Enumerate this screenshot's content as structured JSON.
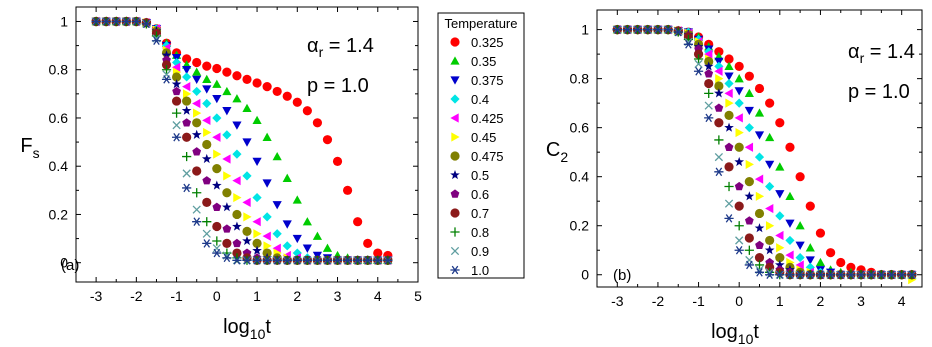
{
  "chart_data": [
    {
      "type": "scatter",
      "panel_label": "(a)",
      "ylabel": "F",
      "ylabel_sub": "s",
      "xlabel": "log",
      "xlabel_sub": "10",
      "xlabel_tail": "t",
      "xlim": [
        -3.5,
        5
      ],
      "ylim": [
        -0.08,
        1.06
      ],
      "xticks": [
        -3,
        -2,
        -1,
        0,
        1,
        2,
        3,
        4,
        5
      ],
      "yticks": [
        0,
        0.2,
        0.4,
        0.6,
        0.8,
        1
      ],
      "yticklabels": [
        "0",
        "0.2",
        "0.4",
        "0.6",
        "0.8",
        "1"
      ],
      "annotations": [
        {
          "greek": "α",
          "sub": "r",
          "text": " = 1.4"
        },
        {
          "text": "p = 1.0"
        }
      ],
      "grid": false,
      "legend": {
        "title": "Temperature",
        "placement": "right of panel (a)"
      },
      "x": [
        -3.0,
        -2.75,
        -2.5,
        -2.25,
        -2.0,
        -1.75,
        -1.5,
        -1.25,
        -1.0,
        -0.75,
        -0.5,
        -0.25,
        0.0,
        0.25,
        0.5,
        0.75,
        1.0,
        1.25,
        1.5,
        1.75,
        2.0,
        2.25,
        2.5,
        2.75,
        3.0,
        3.25,
        3.5,
        3.75,
        4.0,
        4.25
      ],
      "series": [
        {
          "name": "0.325",
          "color": "#ff0000",
          "marker": "circle",
          "values": [
            1,
            1,
            1,
            1,
            1,
            0.995,
            0.97,
            0.91,
            0.87,
            0.845,
            0.83,
            0.815,
            0.805,
            0.79,
            0.775,
            0.76,
            0.745,
            0.73,
            0.71,
            0.69,
            0.665,
            0.63,
            0.58,
            0.51,
            0.42,
            0.3,
            0.17,
            0.08,
            0.04,
            0.03
          ]
        },
        {
          "name": "0.35",
          "color": "#00cc00",
          "marker": "triangle-up",
          "values": [
            1,
            1,
            1,
            1,
            1,
            0.995,
            0.97,
            0.91,
            0.86,
            0.82,
            0.79,
            0.76,
            0.74,
            0.71,
            0.68,
            0.64,
            0.59,
            0.52,
            0.44,
            0.35,
            0.26,
            0.17,
            0.11,
            0.06,
            0.03,
            0.02,
            0.01,
            0.01,
            0.01,
            0.01
          ]
        },
        {
          "name": "0.375",
          "color": "#0000cc",
          "marker": "triangle-down",
          "values": [
            1,
            1,
            1,
            1,
            1,
            0.995,
            0.97,
            0.9,
            0.85,
            0.8,
            0.76,
            0.72,
            0.68,
            0.63,
            0.57,
            0.5,
            0.42,
            0.33,
            0.24,
            0.16,
            0.1,
            0.06,
            0.03,
            0.02,
            0.01,
            0.01,
            0.01,
            0.01,
            0.01,
            0.01
          ]
        },
        {
          "name": "0.4",
          "color": "#00e5e5",
          "marker": "diamond",
          "values": [
            1,
            1,
            1,
            1,
            1,
            0.995,
            0.97,
            0.9,
            0.83,
            0.77,
            0.71,
            0.66,
            0.6,
            0.53,
            0.45,
            0.36,
            0.27,
            0.19,
            0.12,
            0.07,
            0.04,
            0.02,
            0.01,
            0.01,
            0.01,
            0.01,
            0.01,
            0.01,
            0.01,
            0.01
          ]
        },
        {
          "name": "0.425",
          "color": "#ff00ff",
          "marker": "triangle-left",
          "values": [
            1,
            1,
            1,
            1,
            1,
            0.995,
            0.97,
            0.89,
            0.81,
            0.73,
            0.66,
            0.59,
            0.52,
            0.43,
            0.34,
            0.25,
            0.17,
            0.11,
            0.06,
            0.03,
            0.02,
            0.01,
            0.01,
            0.01,
            0.01,
            0.01,
            0.01,
            0.01,
            0.01,
            0.01
          ]
        },
        {
          "name": "0.45",
          "color": "#ffff00",
          "marker": "triangle-right",
          "values": [
            1,
            1,
            1,
            1,
            1,
            0.995,
            0.965,
            0.88,
            0.79,
            0.7,
            0.62,
            0.54,
            0.45,
            0.36,
            0.27,
            0.19,
            0.12,
            0.07,
            0.04,
            0.02,
            0.01,
            0.01,
            0.01,
            0.01,
            0.01,
            0.01,
            0.01,
            0.01,
            0.01,
            0.01
          ]
        },
        {
          "name": "0.475",
          "color": "#808000",
          "marker": "circle",
          "values": [
            1,
            1,
            1,
            1,
            1,
            0.995,
            0.96,
            0.87,
            0.77,
            0.67,
            0.58,
            0.49,
            0.39,
            0.29,
            0.2,
            0.13,
            0.08,
            0.04,
            0.02,
            0.01,
            0.01,
            0.01,
            0.01,
            0.01,
            0.01,
            0.01,
            0.01,
            0.01,
            0.01,
            0.01
          ]
        },
        {
          "name": "0.5",
          "color": "#000080",
          "marker": "star",
          "values": [
            1,
            1,
            1,
            1,
            1,
            0.995,
            0.96,
            0.86,
            0.74,
            0.63,
            0.53,
            0.43,
            0.32,
            0.23,
            0.15,
            0.09,
            0.05,
            0.02,
            0.01,
            0.01,
            0.01,
            0.01,
            0.01,
            0.01,
            0.01,
            0.01,
            0.01,
            0.01,
            0.01,
            0.01
          ]
        },
        {
          "name": "0.6",
          "color": "#800080",
          "marker": "pentagon",
          "values": [
            1,
            1,
            1,
            1,
            1,
            0.995,
            0.95,
            0.84,
            0.71,
            0.58,
            0.46,
            0.34,
            0.23,
            0.14,
            0.08,
            0.04,
            0.02,
            0.01,
            0.01,
            0.01,
            0.01,
            0.01,
            0.01,
            0.01,
            0.01,
            0.01,
            0.01,
            0.01,
            0.01,
            0.01
          ]
        },
        {
          "name": "0.7",
          "color": "#8b1a1a",
          "marker": "circle",
          "values": [
            1,
            1,
            1,
            1,
            1,
            0.995,
            0.95,
            0.82,
            0.67,
            0.52,
            0.38,
            0.25,
            0.15,
            0.08,
            0.04,
            0.02,
            0.01,
            0.01,
            0.01,
            0.01,
            0.01,
            0.01,
            0.01,
            0.01,
            0.01,
            0.01,
            0.01,
            0.01,
            0.01,
            0.01
          ]
        },
        {
          "name": "0.8",
          "color": "#008000",
          "marker": "plus",
          "values": [
            1,
            1,
            1,
            1,
            1,
            0.99,
            0.94,
            0.8,
            0.62,
            0.44,
            0.29,
            0.17,
            0.09,
            0.04,
            0.02,
            0.01,
            0.01,
            0.01,
            0.01,
            0.01,
            0.01,
            0.01,
            0.01,
            0.01,
            0.01,
            0.01,
            0.01,
            0.01,
            0.01,
            0.01
          ]
        },
        {
          "name": "0.9",
          "color": "#5f9ea0",
          "marker": "cross",
          "values": [
            1,
            1,
            1,
            1,
            1,
            0.99,
            0.93,
            0.78,
            0.57,
            0.37,
            0.22,
            0.12,
            0.06,
            0.03,
            0.01,
            0.01,
            0.01,
            0.01,
            0.01,
            0.01,
            0.01,
            0.01,
            0.01,
            0.01,
            0.01,
            0.01,
            0.01,
            0.01,
            0.01,
            0.01
          ]
        },
        {
          "name": "1.0",
          "color": "#1e3a8a",
          "marker": "asterisk",
          "values": [
            1,
            1,
            1,
            1,
            1,
            0.99,
            0.92,
            0.76,
            0.52,
            0.31,
            0.17,
            0.08,
            0.04,
            0.02,
            0.01,
            0.01,
            0.01,
            0.01,
            0.01,
            0.01,
            0.01,
            0.01,
            0.01,
            0.01,
            0.01,
            0.01,
            0.01,
            0.01,
            0.01,
            0.01
          ]
        }
      ]
    },
    {
      "type": "scatter",
      "panel_label": "(b)",
      "ylabel": "C",
      "ylabel_sub": "2",
      "xlabel": "log",
      "xlabel_sub": "10",
      "xlabel_tail": "t",
      "xlim": [
        -3.5,
        4.5
      ],
      "ylim": [
        -0.05,
        1.08
      ],
      "xticks": [
        -3,
        -2,
        -1,
        0,
        1,
        2,
        3,
        4
      ],
      "yticks": [
        0,
        0.2,
        0.4,
        0.6,
        0.8,
        1
      ],
      "yticklabels": [
        "0",
        "0.2",
        "0.4",
        "0.6",
        "0.8",
        "1"
      ],
      "annotations": [
        {
          "greek": "α",
          "sub": "r",
          "text": " = 1.4"
        },
        {
          "text": "p = 1.0"
        }
      ],
      "grid": false,
      "x": [
        -3.0,
        -2.75,
        -2.5,
        -2.25,
        -2.0,
        -1.75,
        -1.5,
        -1.25,
        -1.0,
        -0.75,
        -0.5,
        -0.25,
        0.0,
        0.25,
        0.5,
        0.75,
        1.0,
        1.25,
        1.5,
        1.75,
        2.0,
        2.25,
        2.5,
        2.75,
        3.0,
        3.25,
        3.5,
        3.75,
        4.0,
        4.25
      ],
      "series": [
        {
          "name": "0.325",
          "color": "#ff0000",
          "marker": "circle",
          "values": [
            1,
            1,
            1,
            1,
            1,
            1,
            0.995,
            0.99,
            0.97,
            0.94,
            0.91,
            0.88,
            0.85,
            0.81,
            0.76,
            0.7,
            0.62,
            0.52,
            0.4,
            0.28,
            0.17,
            0.09,
            0.05,
            0.03,
            0.02,
            0.01,
            0,
            0,
            0,
            0
          ]
        },
        {
          "name": "0.35",
          "color": "#00cc00",
          "marker": "triangle-up",
          "values": [
            1,
            1,
            1,
            1,
            1,
            1,
            0.995,
            0.99,
            0.97,
            0.93,
            0.89,
            0.85,
            0.8,
            0.74,
            0.66,
            0.56,
            0.44,
            0.32,
            0.2,
            0.11,
            0.05,
            0.02,
            0.01,
            0.01,
            0,
            0,
            0,
            0,
            0,
            0
          ]
        },
        {
          "name": "0.375",
          "color": "#0000cc",
          "marker": "triangle-down",
          "values": [
            1,
            1,
            1,
            1,
            1,
            1,
            0.995,
            0.99,
            0.96,
            0.92,
            0.87,
            0.81,
            0.75,
            0.67,
            0.57,
            0.45,
            0.33,
            0.21,
            0.12,
            0.06,
            0.02,
            0.01,
            0,
            0,
            0,
            0,
            0,
            0,
            0,
            0
          ]
        },
        {
          "name": "0.4",
          "color": "#00e5e5",
          "marker": "diamond",
          "values": [
            1,
            1,
            1,
            1,
            1,
            1,
            0.995,
            0.99,
            0.96,
            0.91,
            0.85,
            0.78,
            0.7,
            0.6,
            0.48,
            0.36,
            0.24,
            0.14,
            0.07,
            0.03,
            0.01,
            0,
            0,
            0,
            0,
            0,
            0,
            0,
            0,
            0
          ]
        },
        {
          "name": "0.425",
          "color": "#ff00ff",
          "marker": "triangle-left",
          "values": [
            1,
            1,
            1,
            1,
            1,
            1,
            0.995,
            0.985,
            0.95,
            0.9,
            0.83,
            0.74,
            0.64,
            0.52,
            0.39,
            0.27,
            0.16,
            0.08,
            0.04,
            0.01,
            0,
            0,
            0,
            0,
            0,
            0,
            0,
            0,
            0,
            0
          ]
        },
        {
          "name": "0.45",
          "color": "#ffff00",
          "marker": "triangle-right",
          "values": [
            1,
            1,
            1,
            1,
            1,
            1,
            0.995,
            0.985,
            0.95,
            0.88,
            0.8,
            0.7,
            0.58,
            0.45,
            0.32,
            0.2,
            0.11,
            0.05,
            0.02,
            0.01,
            0,
            0,
            0,
            0,
            0,
            0,
            0,
            0,
            0,
            -0.02
          ]
        },
        {
          "name": "0.475",
          "color": "#808000",
          "marker": "circle",
          "values": [
            1,
            1,
            1,
            1,
            1,
            1,
            0.995,
            0.98,
            0.94,
            0.87,
            0.77,
            0.65,
            0.52,
            0.38,
            0.25,
            0.14,
            0.07,
            0.03,
            0.01,
            0,
            0,
            0,
            0,
            0,
            0,
            0,
            0,
            0,
            0,
            0
          ]
        },
        {
          "name": "0.5",
          "color": "#000080",
          "marker": "star",
          "values": [
            1,
            1,
            1,
            1,
            1,
            1,
            0.995,
            0.98,
            0.93,
            0.85,
            0.74,
            0.6,
            0.46,
            0.32,
            0.19,
            0.1,
            0.04,
            0.02,
            0,
            0,
            0,
            0,
            0,
            0,
            0,
            0,
            0,
            0,
            0,
            0
          ]
        },
        {
          "name": "0.6",
          "color": "#800080",
          "marker": "pentagon",
          "values": [
            1,
            1,
            1,
            1,
            1,
            1,
            0.995,
            0.975,
            0.92,
            0.82,
            0.68,
            0.52,
            0.36,
            0.22,
            0.12,
            0.05,
            0.02,
            0.01,
            0,
            0,
            0,
            0,
            0,
            0,
            0,
            0,
            0,
            0,
            0,
            0
          ]
        },
        {
          "name": "0.7",
          "color": "#8b1a1a",
          "marker": "circle",
          "values": [
            1,
            1,
            1,
            1,
            1,
            1,
            0.995,
            0.97,
            0.9,
            0.78,
            0.62,
            0.44,
            0.28,
            0.15,
            0.07,
            0.03,
            0.01,
            0,
            0,
            0,
            0,
            0,
            0,
            0,
            0,
            0,
            0,
            0,
            0,
            0
          ]
        },
        {
          "name": "0.8",
          "color": "#008000",
          "marker": "plus",
          "values": [
            1,
            1,
            1,
            1,
            1,
            1,
            0.99,
            0.96,
            0.88,
            0.74,
            0.55,
            0.36,
            0.2,
            0.1,
            0.04,
            0.01,
            0,
            0,
            0,
            0,
            0,
            0,
            0,
            0,
            0,
            0,
            0,
            0,
            0,
            0
          ]
        },
        {
          "name": "0.9",
          "color": "#5f9ea0",
          "marker": "cross",
          "values": [
            1,
            1,
            1,
            1,
            1,
            1,
            0.99,
            0.95,
            0.86,
            0.69,
            0.48,
            0.29,
            0.14,
            0.06,
            0.02,
            0.01,
            0,
            0,
            0,
            0,
            0,
            0,
            0,
            0,
            0,
            0,
            0,
            0,
            0,
            0
          ]
        },
        {
          "name": "1.0",
          "color": "#1e3a8a",
          "marker": "asterisk",
          "values": [
            1,
            1,
            1,
            1,
            1,
            1,
            0.99,
            0.94,
            0.83,
            0.64,
            0.42,
            0.23,
            0.1,
            0.04,
            0.01,
            0,
            0,
            0,
            0,
            0,
            0,
            0,
            0,
            0,
            0,
            0,
            0,
            0,
            0,
            0
          ]
        }
      ]
    }
  ]
}
